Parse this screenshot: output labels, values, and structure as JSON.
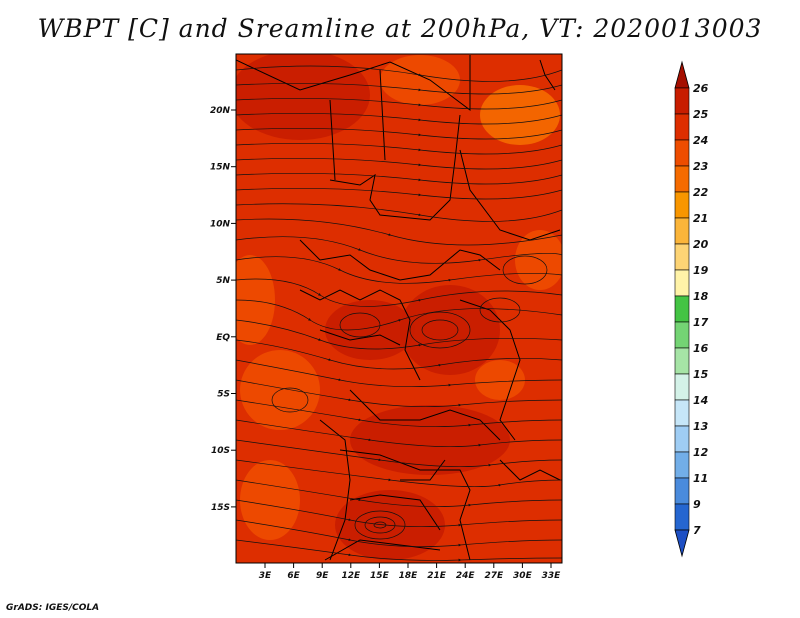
{
  "title": "WBPT [C] and Sreamline at 200hPa, VT: 2020013003",
  "footer": "GrADS: IGES/COLA",
  "map": {
    "lon_ticks": [
      "3E",
      "6E",
      "9E",
      "12E",
      "15E",
      "18E",
      "21E",
      "24E",
      "27E",
      "30E",
      "33E"
    ],
    "lat_ticks": [
      "20N",
      "15N",
      "10N",
      "5N",
      "EQ",
      "5S",
      "10S",
      "15S"
    ]
  },
  "colorbar": {
    "labels": [
      "26",
      "25",
      "24",
      "23",
      "22",
      "21",
      "20",
      "19",
      "18",
      "17",
      "16",
      "15",
      "14",
      "13",
      "12",
      "11",
      "9",
      "7"
    ],
    "colors": [
      "#a50f00",
      "#c81d00",
      "#dd2e00",
      "#ee4d00",
      "#f56b00",
      "#f89600",
      "#fbb53a",
      "#fdd475",
      "#fff3a8",
      "#44c444",
      "#74d474",
      "#a6e4a6",
      "#d4f2e8",
      "#c6e6f8",
      "#9fcdf4",
      "#72aee8",
      "#4a8bdc",
      "#2566d0",
      "#1d4fc4"
    ]
  }
}
